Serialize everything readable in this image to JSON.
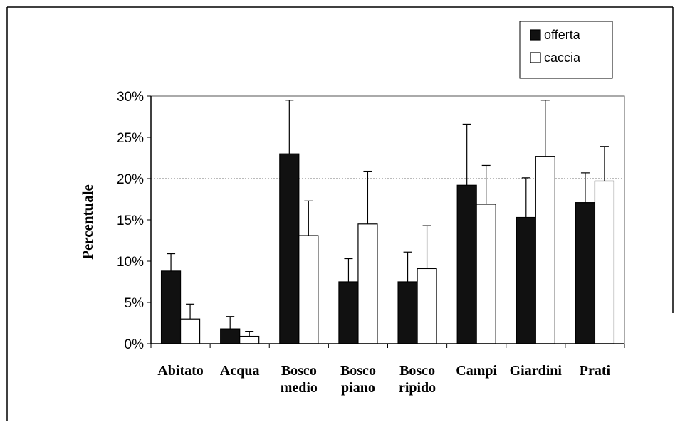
{
  "chart_data": {
    "type": "bar",
    "categories": [
      [
        "Abitato"
      ],
      [
        "Acqua"
      ],
      [
        "Bosco",
        "medio"
      ],
      [
        "Bosco",
        "piano"
      ],
      [
        "Bosco",
        "ripido"
      ],
      [
        "Campi"
      ],
      [
        "Giardini"
      ],
      [
        "Prati"
      ]
    ],
    "series": [
      {
        "name": "offerta",
        "color": "#111111",
        "values": [
          8.8,
          1.8,
          23.0,
          7.5,
          7.5,
          19.2,
          15.3,
          17.1
        ],
        "errors": [
          2.1,
          1.5,
          6.5,
          2.8,
          3.6,
          7.4,
          4.8,
          3.6
        ]
      },
      {
        "name": "caccia",
        "color": "#ffffff",
        "values": [
          3.0,
          0.9,
          13.1,
          14.5,
          9.1,
          16.9,
          22.7,
          19.7
        ],
        "errors": [
          1.8,
          0.6,
          4.2,
          6.4,
          5.2,
          4.7,
          6.8,
          4.2
        ]
      }
    ],
    "ylabel": "Percentuale",
    "ylim": [
      0,
      30
    ],
    "yticks": [
      0,
      5,
      10,
      15,
      20,
      25,
      30
    ],
    "ytick_suffix": "%",
    "gridline_at": 20,
    "legend_position": "top-right"
  }
}
